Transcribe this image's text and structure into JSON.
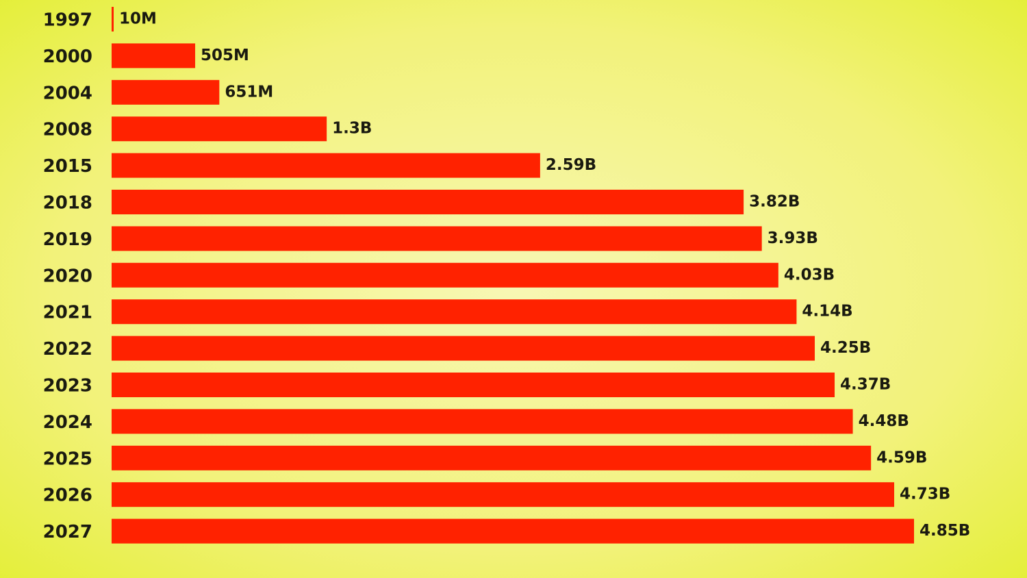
{
  "chart_data": {
    "type": "barh",
    "categories": [
      "1997",
      "2000",
      "2004",
      "2008",
      "2015",
      "2018",
      "2019",
      "2020",
      "2021",
      "2022",
      "2023",
      "2024",
      "2025",
      "2026",
      "2027"
    ],
    "values": [
      10,
      505,
      651,
      1300,
      2590,
      3820,
      3930,
      4030,
      4140,
      4250,
      4370,
      4480,
      4590,
      4730,
      4850
    ],
    "value_labels": [
      "10M",
      "505M",
      "651M",
      "1.3B",
      "2.59B",
      "3.82B",
      "3.93B",
      "4.03B",
      "4.14B",
      "4.25B",
      "4.37B",
      "4.48B",
      "4.59B",
      "4.73B",
      "4.85B"
    ],
    "color": "#ff2200"
  }
}
